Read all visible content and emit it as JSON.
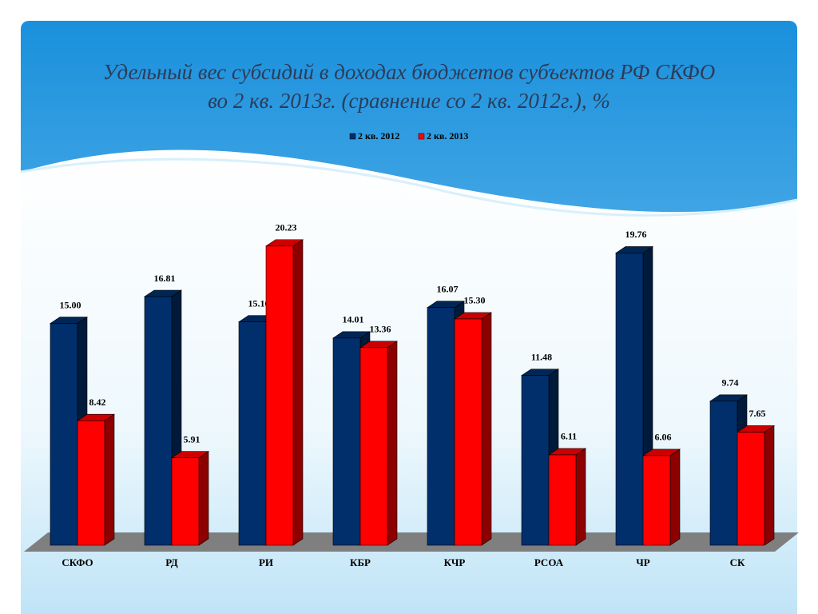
{
  "chart_data": {
    "type": "bar3d",
    "title_lines": [
      "Удельный вес субсидий в доходах бюджетов субъектов РФ СКФО",
      "во 2 кв. 2013г. (сравнение со 2 кв. 2012г.), %"
    ],
    "categories": [
      "СКФО",
      "РД",
      "РИ",
      "КБР",
      "КЧР",
      "РСОА",
      "ЧР",
      "СК"
    ],
    "series": [
      {
        "name": "2 кв. 2012",
        "color": "#002f6c",
        "values": [
          15.0,
          16.81,
          15.1,
          14.01,
          16.07,
          11.48,
          19.76,
          9.74
        ],
        "value_labels": [
          "15.00",
          "16.81",
          "15.10",
          "14.01",
          "16.07",
          "11.48",
          "19.76",
          "9.74"
        ]
      },
      {
        "name": "2 кв. 2013",
        "color": "#ff0000",
        "values": [
          8.42,
          5.91,
          20.23,
          13.36,
          15.3,
          6.11,
          6.06,
          7.65
        ],
        "value_labels": [
          "8.42",
          "5.91",
          "20.23",
          "13.36",
          "15.30",
          "6.11",
          "6.06",
          "7.65"
        ]
      }
    ],
    "legend": "top"
  }
}
